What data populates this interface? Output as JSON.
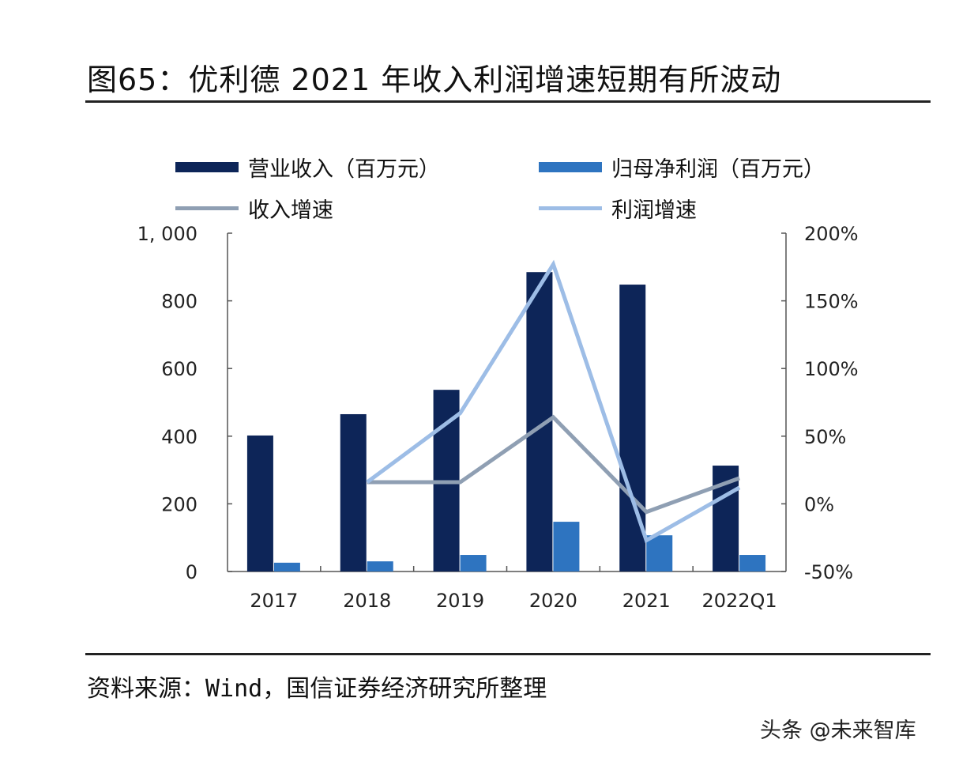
{
  "title": "图65：优利德 2021 年收入利润增速短期有所波动",
  "source": "资料来源：Wind，国信证券经济研究所整理",
  "watermark": "头条 @未来智库",
  "colors": {
    "revenue": "#0d2558",
    "profit": "#2e74c0",
    "revenue_growth": "#8f9fb3",
    "profit_growth": "#9dbde6",
    "axis": "#555555"
  },
  "chart_data": {
    "type": "bar",
    "title": "优利德 2021 年收入利润增速短期有所波动",
    "categories": [
      "2017",
      "2018",
      "2019",
      "2020",
      "2021",
      "2022Q1"
    ],
    "series": [
      {
        "name": "营业收入（百万元）",
        "type": "bar",
        "axis": "left",
        "values": [
          402,
          465,
          537,
          885,
          848,
          313
        ]
      },
      {
        "name": "归母净利润（百万元）",
        "type": "bar",
        "axis": "left",
        "values": [
          26,
          30,
          49,
          147,
          107,
          49
        ]
      },
      {
        "name": "收入增速",
        "type": "line",
        "axis": "right",
        "values": [
          null,
          16,
          16,
          64,
          -6,
          19
        ]
      },
      {
        "name": "利润增速",
        "type": "line",
        "axis": "right",
        "values": [
          null,
          16,
          67,
          177,
          -27,
          12
        ]
      }
    ],
    "y_left": {
      "min": 0,
      "max": 1000,
      "ticks": [
        0,
        200,
        400,
        600,
        800,
        1000
      ],
      "tick_labels": [
        "0",
        "200",
        "400",
        "600",
        "800",
        "1, 000"
      ]
    },
    "y_right": {
      "min": -50,
      "max": 200,
      "ticks": [
        -50,
        0,
        50,
        100,
        150,
        200
      ],
      "tick_labels": [
        "-50%",
        "0%",
        "50%",
        "100%",
        "150%",
        "200%"
      ]
    },
    "xlabel": "",
    "ylabel": "",
    "grid": false,
    "legend_position": "top"
  }
}
